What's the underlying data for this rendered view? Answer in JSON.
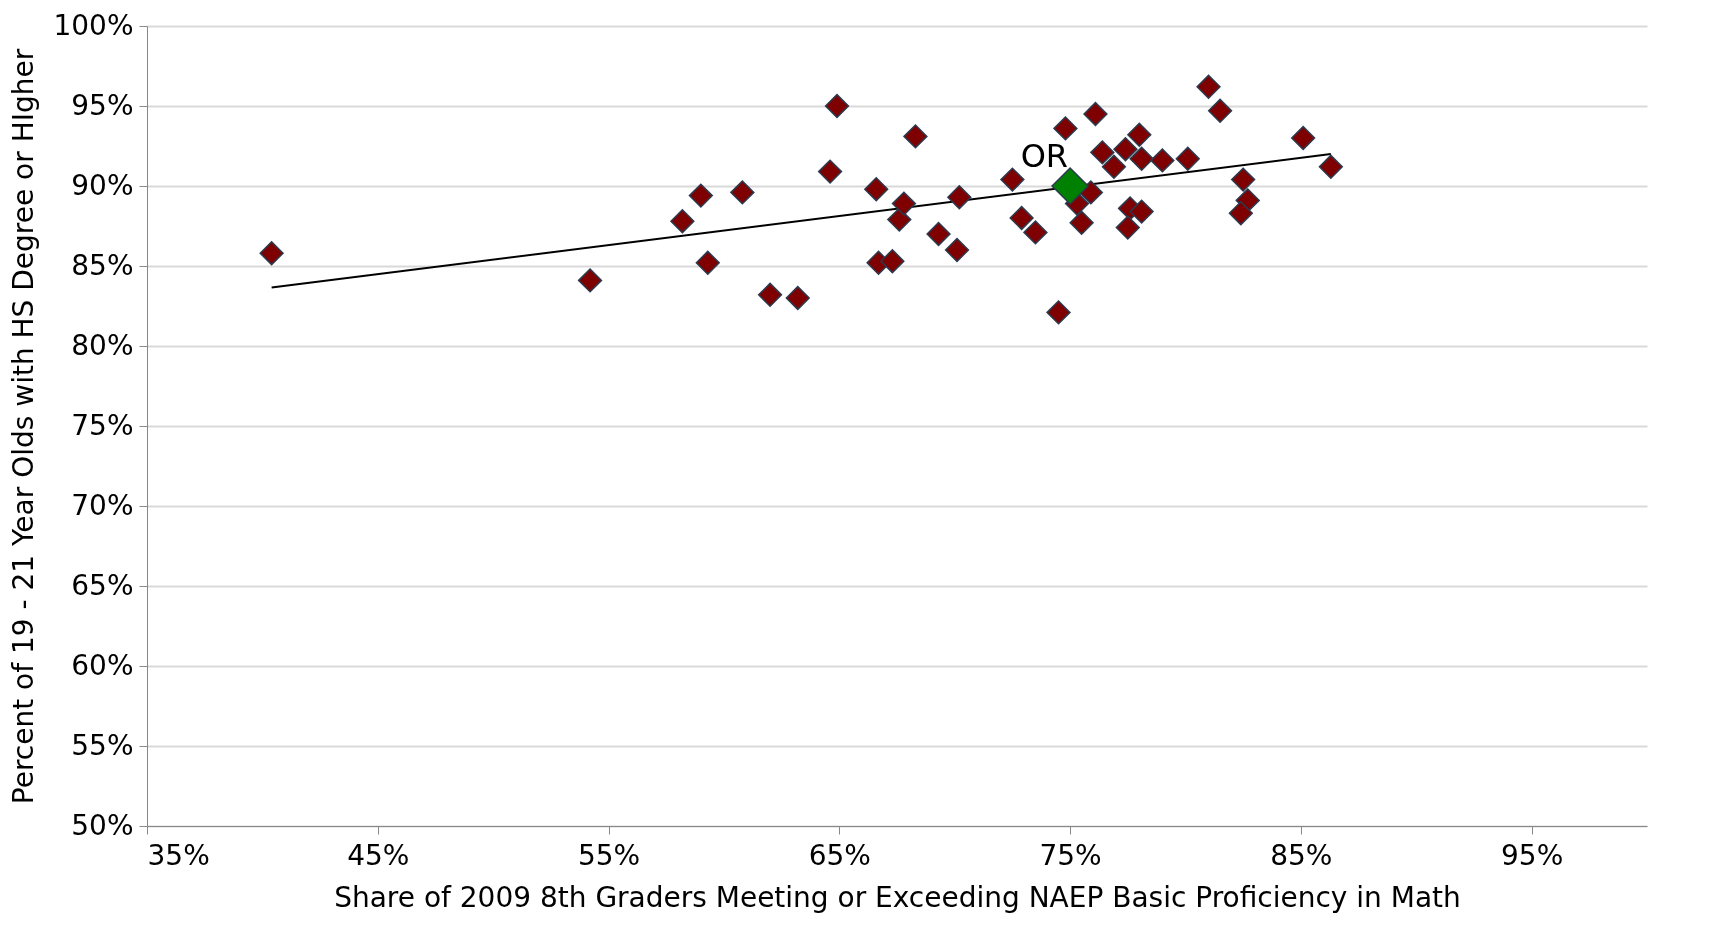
{
  "chart_data": {
    "type": "scatter",
    "xlabel": "Share of 2009 8th Graders Meeting or Exceeding NAEP Basic Proficiency in Math",
    "ylabel": "Percent of 19 - 21 Year Olds with HS Degree or HIgher",
    "xlim": [
      35,
      100
    ],
    "ylim": [
      50,
      100
    ],
    "xticks": [
      {
        "value": 35,
        "label": "35%"
      },
      {
        "value": 45,
        "label": "45%"
      },
      {
        "value": 55,
        "label": "55%"
      },
      {
        "value": 65,
        "label": "65%"
      },
      {
        "value": 75,
        "label": "75%"
      },
      {
        "value": 85,
        "label": "85%"
      },
      {
        "value": 95,
        "label": "95%"
      }
    ],
    "yticks": [
      {
        "value": 50,
        "label": "50%"
      },
      {
        "value": 55,
        "label": "55%"
      },
      {
        "value": 60,
        "label": "60%"
      },
      {
        "value": 65,
        "label": "65%"
      },
      {
        "value": 70,
        "label": "70%"
      },
      {
        "value": 75,
        "label": "75%"
      },
      {
        "value": 80,
        "label": "80%"
      },
      {
        "value": 85,
        "label": "85%"
      },
      {
        "value": 90,
        "label": "90%"
      },
      {
        "value": 95,
        "label": "95%"
      },
      {
        "value": 100,
        "label": "100%"
      }
    ],
    "grid": "y",
    "marker": "diamond",
    "annotations": [
      {
        "text": "OR",
        "x": 75,
        "y": 90
      }
    ],
    "series": [
      {
        "color": "#7f0000",
        "x": [
          40.4,
          54.2,
          58.2,
          59.0,
          59.3,
          60.8,
          62.0,
          63.2,
          64.6,
          64.9,
          66.6,
          66.7,
          67.3,
          67.6,
          67.8,
          68.3,
          69.3,
          70.1,
          70.2,
          72.5,
          72.9,
          73.5,
          74.5,
          74.8,
          75.3,
          75.9,
          75.5,
          76.1,
          76.4,
          76.9,
          77.4,
          77.6,
          77.5,
          78.0,
          78.1,
          78.1,
          79.0,
          80.1,
          81.0,
          81.5,
          82.5,
          82.7,
          82.4,
          85.1,
          86.3
        ],
        "values": [
          85.8,
          84.1,
          87.8,
          89.4,
          85.2,
          89.6,
          83.2,
          83.0,
          90.9,
          95.0,
          89.8,
          85.2,
          85.3,
          87.9,
          88.9,
          93.1,
          87.0,
          86.0,
          89.3,
          90.4,
          88.0,
          87.1,
          82.1,
          93.6,
          88.9,
          89.6,
          87.7,
          94.5,
          92.1,
          91.2,
          92.3,
          88.6,
          87.4,
          93.2,
          91.7,
          88.4,
          91.6,
          91.7,
          96.2,
          94.7,
          90.4,
          89.1,
          88.3,
          93.0,
          91.2
        ]
      },
      {
        "color": "#008000",
        "x": [
          75.0
        ],
        "values": [
          90.0
        ]
      },
      {
        "type": "line",
        "marker": "none",
        "color": "#000000",
        "x": [
          40.4,
          86.3
        ],
        "values": [
          83.65,
          92.0
        ]
      }
    ]
  }
}
